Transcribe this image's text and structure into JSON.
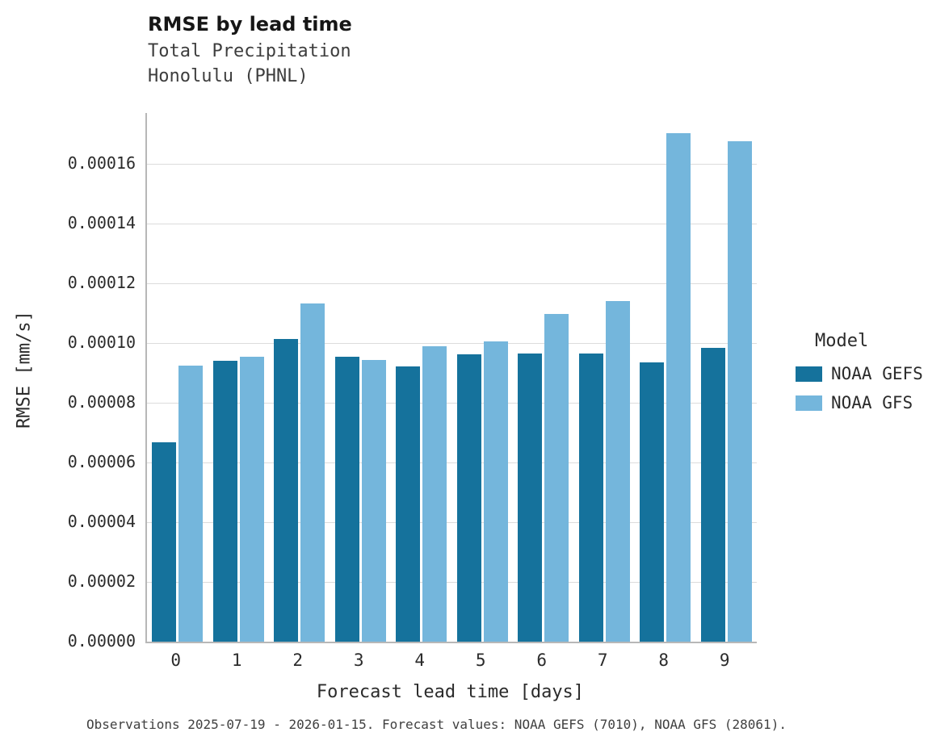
{
  "header": {
    "title": "RMSE by lead time",
    "subtitle_line1": "Total Precipitation",
    "subtitle_line2": "Honolulu (PHNL)"
  },
  "chart_data": {
    "type": "bar",
    "title": "RMSE by lead time",
    "subtitle": [
      "Total Precipitation",
      "Honolulu (PHNL)"
    ],
    "categories": [
      "0",
      "1",
      "2",
      "3",
      "4",
      "5",
      "6",
      "7",
      "8",
      "9"
    ],
    "series": [
      {
        "name": "NOAA GEFS",
        "color": "#15729c",
        "values": [
          6.67e-05,
          9.4e-05,
          0.0001013,
          9.55e-05,
          9.22e-05,
          9.62e-05,
          9.65e-05,
          9.65e-05,
          9.35e-05,
          9.85e-05
        ]
      },
      {
        "name": "NOAA GFS",
        "color": "#74b6dc",
        "values": [
          9.25e-05,
          9.55e-05,
          0.0001133,
          9.42e-05,
          9.88e-05,
          0.0001005,
          0.0001097,
          0.000114,
          0.0001703,
          0.0001675
        ]
      }
    ],
    "xlabel": "Forecast lead time [days]",
    "ylabel": "RMSE [mm/s]",
    "ylim": [
      0,
      0.000177
    ],
    "yticks": [
      0,
      2e-05,
      4e-05,
      6e-05,
      8e-05,
      0.0001,
      0.00012,
      0.00014,
      0.00016
    ],
    "ytick_labels": [
      "0.00000",
      "0.00002",
      "0.00004",
      "0.00006",
      "0.00008",
      "0.00010",
      "0.00012",
      "0.00014",
      "0.00016"
    ],
    "grid": true,
    "legend_title": "Model",
    "legend_position": "right"
  },
  "legend": {
    "title": "Model",
    "entries": [
      {
        "label": "NOAA GEFS"
      },
      {
        "label": "NOAA GFS"
      }
    ]
  },
  "footer": {
    "caption": "Observations 2025-07-19 - 2026-01-15. Forecast values: NOAA GEFS (7010), NOAA GFS (28061)."
  }
}
